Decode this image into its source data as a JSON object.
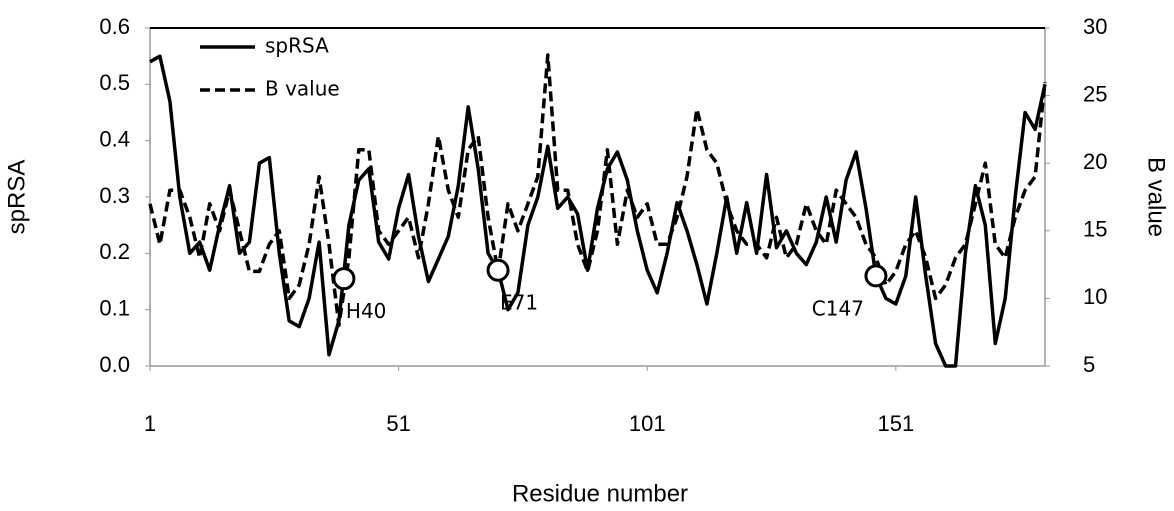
{
  "chart_data": {
    "type": "line",
    "xlabel": "Residue number",
    "ylabel": "spRSA",
    "y2label": "B value",
    "x": [
      1,
      3,
      5,
      7,
      9,
      11,
      13,
      15,
      17,
      19,
      21,
      23,
      25,
      27,
      29,
      31,
      33,
      35,
      37,
      39,
      41,
      43,
      45,
      47,
      49,
      51,
      53,
      55,
      57,
      59,
      61,
      63,
      65,
      67,
      69,
      71,
      73,
      75,
      77,
      79,
      81,
      83,
      85,
      87,
      89,
      91,
      93,
      95,
      97,
      99,
      101,
      103,
      105,
      107,
      109,
      111,
      113,
      115,
      117,
      119,
      121,
      123,
      125,
      127,
      129,
      131,
      133,
      135,
      137,
      139,
      141,
      143,
      145,
      147,
      149,
      151,
      153,
      155,
      157,
      159,
      161,
      163,
      165,
      167,
      169,
      171,
      173,
      175,
      177,
      179,
      181
    ],
    "series": [
      {
        "name": "spRSA",
        "color": "#000000",
        "style": "solid",
        "values": [
          0.54,
          0.55,
          0.47,
          0.3,
          0.2,
          0.22,
          0.17,
          0.25,
          0.32,
          0.2,
          0.22,
          0.36,
          0.37,
          0.2,
          0.08,
          0.07,
          0.12,
          0.22,
          0.02,
          0.08,
          0.25,
          0.33,
          0.35,
          0.22,
          0.19,
          0.28,
          0.34,
          0.23,
          0.15,
          0.19,
          0.23,
          0.32,
          0.46,
          0.35,
          0.2,
          0.17,
          0.1,
          0.13,
          0.25,
          0.3,
          0.39,
          0.28,
          0.3,
          0.27,
          0.17,
          0.28,
          0.35,
          0.38,
          0.33,
          0.24,
          0.17,
          0.13,
          0.2,
          0.29,
          0.24,
          0.18,
          0.11,
          0.2,
          0.3,
          0.2,
          0.29,
          0.2,
          0.34,
          0.21,
          0.24,
          0.2,
          0.18,
          0.22,
          0.3,
          0.22,
          0.33,
          0.38,
          0.28,
          0.16,
          0.12,
          0.11,
          0.16,
          0.3,
          0.16,
          0.04,
          0.0,
          0.0,
          0.2,
          0.32,
          0.25,
          0.04,
          0.12,
          0.3,
          0.45,
          0.42,
          0.5
        ]
      },
      {
        "name": "B value",
        "color": "#000000",
        "style": "dashed",
        "axis": "y2",
        "values": [
          17,
          14,
          18,
          18,
          16,
          13,
          17,
          15,
          18,
          15,
          12,
          12,
          14,
          15,
          10,
          11,
          14,
          19,
          14,
          8,
          13,
          21,
          21,
          15,
          14,
          15,
          16,
          13,
          17,
          22,
          18,
          16,
          21,
          22,
          16,
          12,
          17,
          15,
          17,
          19,
          28,
          18,
          18,
          14,
          12,
          15,
          21,
          14,
          18,
          16,
          17,
          14,
          14,
          16,
          19,
          24,
          21,
          20,
          17,
          15,
          14,
          14,
          13,
          16,
          13,
          14,
          17,
          15,
          14,
          18,
          17,
          16,
          14,
          13,
          11,
          12,
          14,
          15,
          13,
          10,
          11,
          13,
          14,
          17,
          20,
          14,
          13,
          16,
          18,
          19,
          26
        ]
      }
    ],
    "xlim": [
      1,
      181
    ],
    "xticks": [
      1,
      51,
      101,
      151
    ],
    "ylim": [
      0,
      0.6
    ],
    "yticks": [
      {
        "value": 0,
        "label": "0.0"
      },
      0.1,
      0.2,
      0.3,
      0.4,
      0.5,
      0.6
    ],
    "y2lim": [
      5,
      30
    ],
    "y2ticks": [
      5,
      10,
      15,
      20,
      25,
      30
    ],
    "legend": "upper left",
    "annotations": [
      {
        "text": "H40",
        "x": 40,
        "y": 0.155
      },
      {
        "text": "E71",
        "x": 71,
        "y": 0.17
      },
      {
        "text": "C147",
        "x": 147,
        "y": 0.16
      }
    ]
  }
}
